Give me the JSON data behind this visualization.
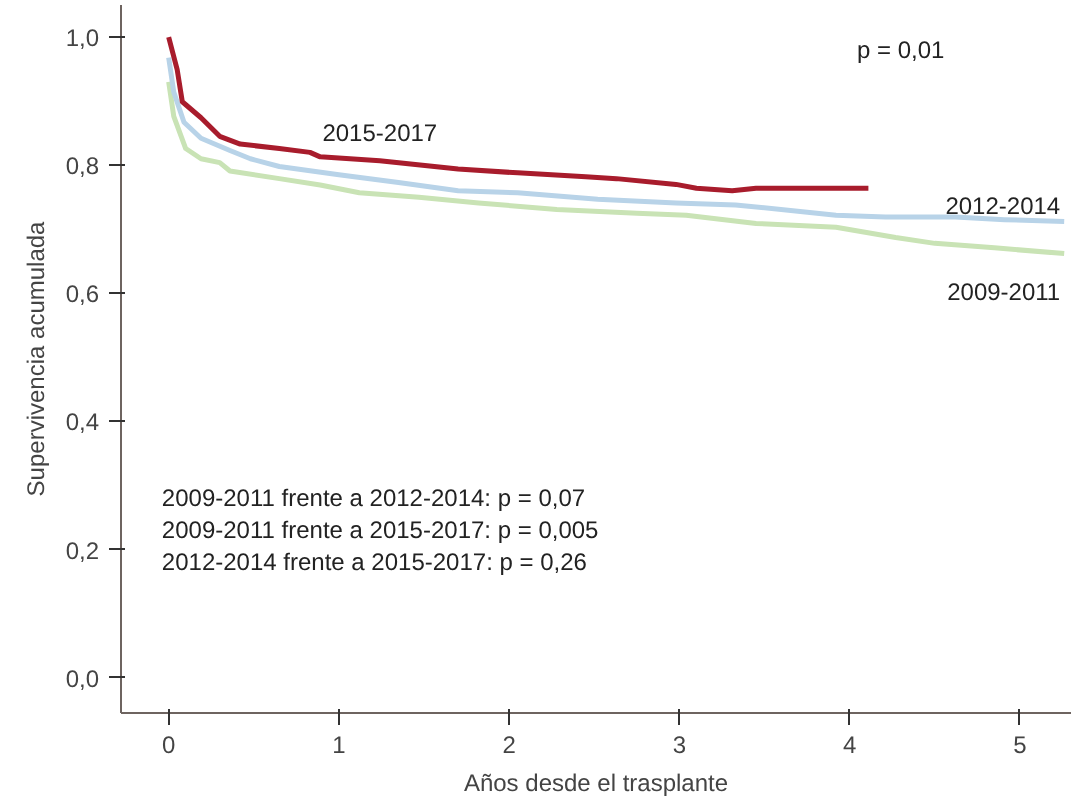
{
  "chart_data": {
    "type": "line",
    "xlabel": "Años desde el trasplante",
    "ylabel": "Supervivencia acumulada",
    "xlim": [
      -0.28,
      5.3
    ],
    "ylim": [
      -0.055,
      1.05
    ],
    "xticks": [
      0,
      1,
      2,
      3,
      4,
      5
    ],
    "yticks": [
      {
        "value": 0,
        "label": "0,0"
      },
      {
        "value": 0.2,
        "label": "0,2"
      },
      {
        "value": 0.4,
        "label": "0,4"
      },
      {
        "value": 0.6,
        "label": "0,6"
      },
      {
        "value": 0.8,
        "label": "0,8"
      },
      {
        "value": 1.0,
        "label": "1,0"
      }
    ],
    "grid": false,
    "marker": "none",
    "line_style": "solid",
    "annotations": [
      "p = 0,01",
      "2009-2011 frente a 2012-2014: p = 0,07",
      "2009-2011 frente a 2015-2017: p = 0,005",
      "2012-2014 frente a 2015-2017: p = 0,26"
    ],
    "series": [
      {
        "name": "2009-2011",
        "color": "#c9e3b5",
        "x": [
          0,
          0.03,
          0.1,
          0.19,
          0.3,
          0.36,
          0.65,
          0.89,
          1.12,
          1.47,
          1.82,
          2.28,
          2.75,
          3.04,
          3.45,
          3.92,
          4.27,
          4.5,
          4.85,
          5.26
        ],
        "values": [
          0.93,
          0.876,
          0.826,
          0.81,
          0.804,
          0.791,
          0.779,
          0.769,
          0.757,
          0.75,
          0.741,
          0.731,
          0.725,
          0.722,
          0.709,
          0.703,
          0.687,
          0.678,
          0.671,
          0.662
        ]
      },
      {
        "name": "2012-2014",
        "color": "#b8d3e8",
        "x": [
          0,
          0.03,
          0.09,
          0.19,
          0.36,
          0.48,
          0.65,
          1.0,
          1.35,
          1.7,
          2.05,
          2.52,
          2.98,
          3.33,
          3.92,
          4.21,
          4.62,
          4.91,
          5.26
        ],
        "values": [
          0.968,
          0.914,
          0.867,
          0.842,
          0.823,
          0.81,
          0.798,
          0.785,
          0.773,
          0.76,
          0.757,
          0.747,
          0.741,
          0.738,
          0.722,
          0.719,
          0.719,
          0.715,
          0.712
        ]
      },
      {
        "name": "2015-2017",
        "color": "#a81c2c",
        "x": [
          0,
          0.05,
          0.08,
          0.19,
          0.3,
          0.42,
          0.65,
          0.83,
          0.89,
          1.24,
          1.7,
          2.05,
          2.45,
          2.63,
          2.98,
          3.1,
          3.31,
          3.45,
          3.68,
          4.11
        ],
        "values": [
          1.0,
          0.949,
          0.899,
          0.874,
          0.845,
          0.833,
          0.826,
          0.82,
          0.813,
          0.807,
          0.794,
          0.788,
          0.782,
          0.779,
          0.77,
          0.764,
          0.76,
          0.764,
          0.764,
          0.764
        ]
      }
    ]
  }
}
